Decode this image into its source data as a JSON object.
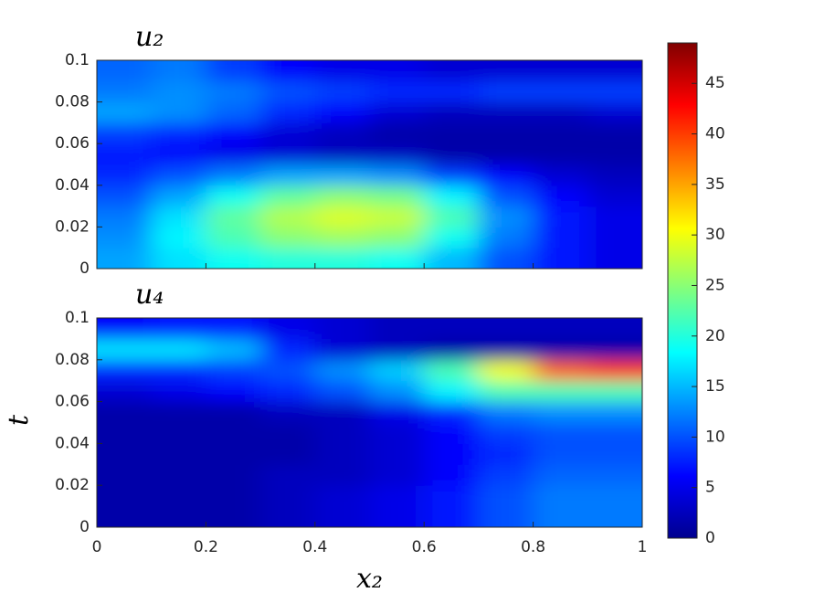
{
  "chart_data": [
    {
      "type": "heatmap",
      "title": "u₂",
      "x": [
        0.05,
        0.15,
        0.25,
        0.35,
        0.45,
        0.55,
        0.65,
        0.75,
        0.85,
        0.95
      ],
      "y": [
        0.005,
        0.015,
        0.025,
        0.035,
        0.045,
        0.055,
        0.065,
        0.075,
        0.085,
        0.095
      ],
      "z": [
        [
          14,
          17,
          19,
          20,
          20,
          19,
          15,
          10,
          7,
          5
        ],
        [
          13,
          18,
          22,
          25,
          26,
          25,
          19,
          12,
          7,
          5
        ],
        [
          12,
          17,
          23,
          27,
          29,
          28,
          22,
          13,
          7,
          5
        ],
        [
          10,
          14,
          19,
          23,
          25,
          24,
          18,
          10,
          6,
          4
        ],
        [
          8,
          10,
          12,
          14,
          14,
          13,
          9,
          6,
          4,
          3
        ],
        [
          7,
          6,
          5,
          4,
          3,
          3,
          2,
          2,
          2,
          2
        ],
        [
          9,
          8,
          6,
          4,
          3,
          2,
          2,
          2,
          2,
          2
        ],
        [
          14,
          13,
          11,
          8,
          6,
          4,
          3,
          3,
          3,
          4
        ],
        [
          12,
          13,
          12,
          10,
          9,
          8,
          8,
          9,
          9,
          9
        ],
        [
          11,
          12,
          9,
          6,
          5,
          5,
          4,
          4,
          4,
          4
        ]
      ],
      "xlim": [
        0,
        1
      ],
      "ylim": [
        0,
        0.1
      ],
      "xticks": [
        0,
        0.2,
        0.4,
        0.6,
        0.8,
        1
      ],
      "yticks": [
        0,
        0.02,
        0.04,
        0.06,
        0.08,
        0.1
      ],
      "colormap": "jet",
      "clim": [
        0,
        49
      ],
      "cticks": [
        0,
        5,
        10,
        15,
        20,
        25,
        30,
        35,
        40,
        45
      ]
    },
    {
      "type": "heatmap",
      "title": "u₄",
      "xlabel": "x₂",
      "ylabel": "t",
      "x": [
        0.05,
        0.15,
        0.25,
        0.35,
        0.45,
        0.55,
        0.65,
        0.75,
        0.85,
        0.95
      ],
      "y": [
        0.005,
        0.015,
        0.025,
        0.035,
        0.045,
        0.055,
        0.065,
        0.075,
        0.085,
        0.095
      ],
      "z": [
        [
          2,
          2,
          2,
          3,
          4,
          5,
          7,
          10,
          12,
          12
        ],
        [
          2,
          2,
          2,
          3,
          4,
          5,
          7,
          10,
          12,
          12
        ],
        [
          2,
          2,
          2,
          3,
          3,
          4,
          6,
          9,
          11,
          11
        ],
        [
          2,
          2,
          2,
          2,
          3,
          4,
          6,
          8,
          10,
          10
        ],
        [
          2,
          2,
          2,
          2,
          3,
          4,
          6,
          9,
          10,
          10
        ],
        [
          2,
          2,
          2,
          3,
          3,
          5,
          8,
          12,
          13,
          13
        ],
        [
          4,
          5,
          6,
          8,
          10,
          13,
          18,
          22,
          22,
          22
        ],
        [
          8,
          8,
          9,
          10,
          13,
          16,
          22,
          30,
          38,
          40
        ],
        [
          17,
          17,
          15,
          8,
          4,
          3,
          2,
          2,
          2,
          2
        ],
        [
          6,
          7,
          7,
          5,
          4,
          3,
          3,
          3,
          3,
          3
        ]
      ],
      "xlim": [
        0,
        1
      ],
      "ylim": [
        0,
        0.1
      ],
      "xticks": [
        0,
        0.2,
        0.4,
        0.6,
        0.8,
        1
      ],
      "yticks": [
        0,
        0.02,
        0.04,
        0.06,
        0.08,
        0.1
      ],
      "colormap": "jet",
      "clim": [
        0,
        49
      ]
    }
  ]
}
